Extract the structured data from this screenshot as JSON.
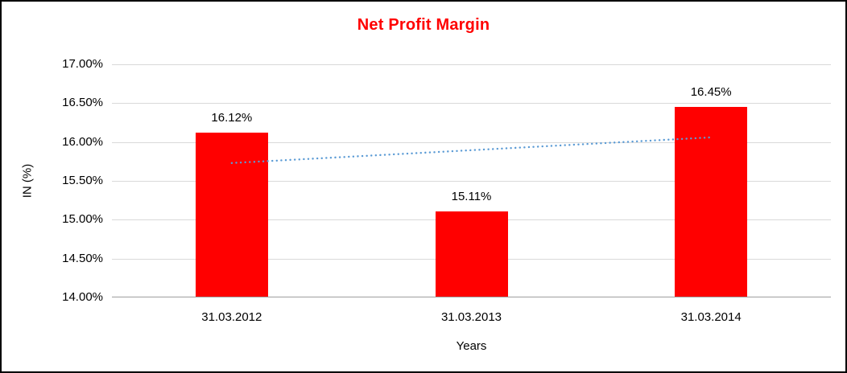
{
  "chart": {
    "title": "Net Profit Margin",
    "xlabel": "Years",
    "ylabel": "IN (%)"
  },
  "chart_data": {
    "type": "bar",
    "title": "Net Profit Margin",
    "title_color": "#FF0000",
    "categories": [
      "31.03.2012",
      "31.03.2013",
      "31.03.2014"
    ],
    "values": [
      16.12,
      15.11,
      16.45
    ],
    "data_labels": [
      "16.12%",
      "15.11%",
      "16.45%"
    ],
    "xlabel": "Years",
    "ylabel": "IN (%)",
    "ylim": [
      14.0,
      17.0
    ],
    "ytick_step": 0.5,
    "ytick_labels": [
      "14.00%",
      "14.50%",
      "15.00%",
      "15.50%",
      "16.00%",
      "16.50%",
      "17.00%"
    ],
    "grid": true,
    "legend": "none",
    "bar_color": "#FF0000",
    "trendline": {
      "type": "linear",
      "style": "dotted",
      "color": "#5b9bd5",
      "start_value": 15.73,
      "end_value": 16.06
    }
  }
}
